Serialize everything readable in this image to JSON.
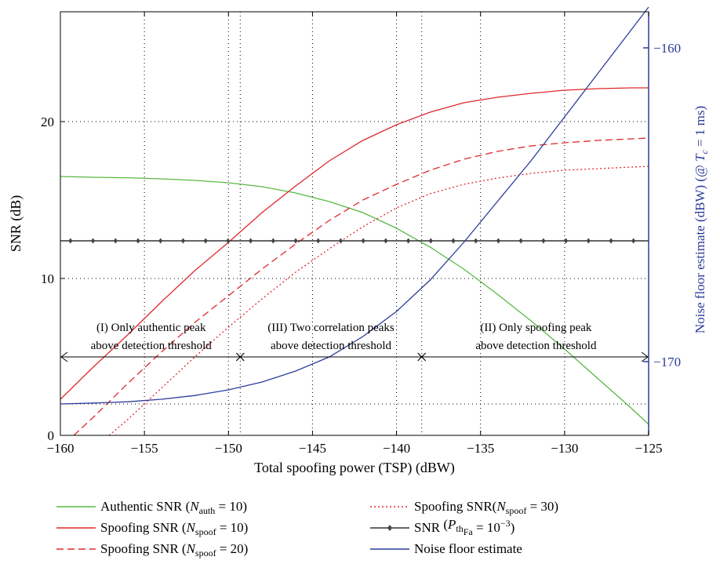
{
  "chart_data": {
    "type": "line",
    "xlabel": "Total spoofing power (TSP) (dBW)",
    "ylabel": "SNR (dB)",
    "y2label": {
      "prefix": "Noise floor estimate (dBW) (@ ",
      "var": "T",
      "sub": "c",
      "suffix": " = 1 ms)"
    },
    "xlim": [
      -160,
      -125
    ],
    "ylim": [
      0,
      27
    ],
    "y2lim": [
      -172.35,
      -158.85
    ],
    "xticks": [
      -160,
      -155,
      -150,
      -145,
      -140,
      -135,
      -130,
      -125
    ],
    "xtick_labels": [
      "−160",
      "−155",
      "−150",
      "−145",
      "−140",
      "−135",
      "−130",
      "−125"
    ],
    "yticks": [
      0,
      10,
      20
    ],
    "ytick_labels": [
      "0",
      "10",
      "20"
    ],
    "y2ticks": [
      -170,
      -160
    ],
    "y2tick_labels": [
      "−170",
      "−160"
    ],
    "grid": true,
    "grid_y_extra": [
      2
    ],
    "boundaries": [
      -149.3,
      -138.5
    ],
    "arrow_y": 5,
    "regions": [
      {
        "line1": "(I) Only authentic peak",
        "line2": "above detection threshold",
        "x_center": -154.6
      },
      {
        "line1": "(III) Two correlation peaks",
        "line2": "above detection threshold",
        "x_center": -143.9
      },
      {
        "line1": "(II) Only spoofing peak",
        "line2": "above detection threshold",
        "x_center": -131.7
      }
    ],
    "series": [
      {
        "key": "authentic",
        "axis": "left",
        "color": "#59b845",
        "dash": "",
        "marker": false,
        "legend": {
          "pre": "Authentic SNR (",
          "var": "N",
          "sub": "auth",
          "post": " = 10)"
        },
        "x": [
          -160,
          -158,
          -156,
          -154,
          -152,
          -150,
          -148,
          -146,
          -144,
          -142,
          -140,
          -138,
          -136,
          -134,
          -132,
          -130,
          -128,
          -126,
          -125
        ],
        "values": [
          16.5,
          16.45,
          16.42,
          16.35,
          16.25,
          16.1,
          15.85,
          15.45,
          14.9,
          14.2,
          13.2,
          12.0,
          10.6,
          9.0,
          7.3,
          5.5,
          3.6,
          1.7,
          0.7
        ]
      },
      {
        "key": "spoof10",
        "axis": "left",
        "color": "#e0282d",
        "dash": "",
        "marker": false,
        "legend": {
          "pre": "Spoofing SNR (",
          "var": "N",
          "sub": "spoof",
          "post": " = 10)"
        },
        "x": [
          -160,
          -158,
          -156,
          -154,
          -152,
          -150,
          -148,
          -146,
          -144,
          -142,
          -140,
          -138,
          -136,
          -134,
          -132,
          -130,
          -128,
          -126,
          -125
        ],
        "values": [
          2.3,
          4.4,
          6.4,
          8.5,
          10.5,
          12.3,
          14.2,
          15.9,
          17.5,
          18.8,
          19.8,
          20.6,
          21.2,
          21.55,
          21.8,
          22.0,
          22.1,
          22.15,
          22.15
        ]
      },
      {
        "key": "spoof20",
        "axis": "left",
        "color": "#e0282d",
        "dash": "9,5",
        "marker": false,
        "legend": {
          "pre": "Spoofing SNR (",
          "var": "N",
          "sub": "spoof",
          "post": " = 20)"
        },
        "x": [
          -159.2,
          -158,
          -156,
          -154,
          -152,
          -150,
          -148,
          -146,
          -144,
          -142,
          -140,
          -138,
          -136,
          -134,
          -132,
          -130,
          -128,
          -126,
          -125
        ],
        "values": [
          0,
          1.2,
          3.3,
          5.3,
          7.2,
          8.9,
          10.6,
          12.2,
          13.7,
          15.0,
          16.0,
          16.9,
          17.6,
          18.1,
          18.45,
          18.65,
          18.8,
          18.9,
          18.95
        ]
      },
      {
        "key": "spoof30",
        "axis": "left",
        "color": "#e0282d",
        "dash": "2,3",
        "marker": false,
        "legend": {
          "pre": "Spoofing SNR(",
          "var": "N",
          "sub": "spoof",
          "post": " = 30)"
        },
        "x": [
          -157.1,
          -156,
          -154,
          -152,
          -150,
          -148,
          -146,
          -144,
          -142,
          -140,
          -138,
          -136,
          -134,
          -132,
          -130,
          -128,
          -126,
          -125
        ],
        "values": [
          0,
          1.0,
          3.0,
          5.0,
          6.9,
          8.7,
          10.4,
          11.9,
          13.3,
          14.5,
          15.4,
          16.0,
          16.4,
          16.7,
          16.9,
          17.0,
          17.1,
          17.15
        ]
      },
      {
        "key": "snrth",
        "axis": "left",
        "color": "#333333",
        "dash": "",
        "marker": true,
        "legend": {
          "pre": "SNR",
          "sub": "th",
          "mid": " (",
          "var": "P",
          "sub2": "Fa",
          "post": " = 10",
          "sup": "−3",
          "post2": ")"
        },
        "x": [
          -160,
          -125
        ],
        "values": [
          12.4,
          12.4
        ]
      },
      {
        "key": "noise",
        "axis": "right",
        "color": "#2b3c9a",
        "dash": "",
        "marker": false,
        "legend": {
          "pre": "Noise floor estimate"
        },
        "x": [
          -160,
          -158,
          -156,
          -154,
          -152,
          -150,
          -148,
          -146,
          -144,
          -142,
          -140,
          -138,
          -136,
          -134,
          -132,
          -130,
          -128,
          -126,
          -125
        ],
        "values": [
          -171.35,
          -171.32,
          -171.28,
          -171.2,
          -171.08,
          -170.9,
          -170.65,
          -170.3,
          -169.85,
          -169.2,
          -168.4,
          -167.4,
          -166.2,
          -164.9,
          -163.6,
          -162.2,
          -160.8,
          -159.4,
          -158.7
        ]
      }
    ]
  }
}
